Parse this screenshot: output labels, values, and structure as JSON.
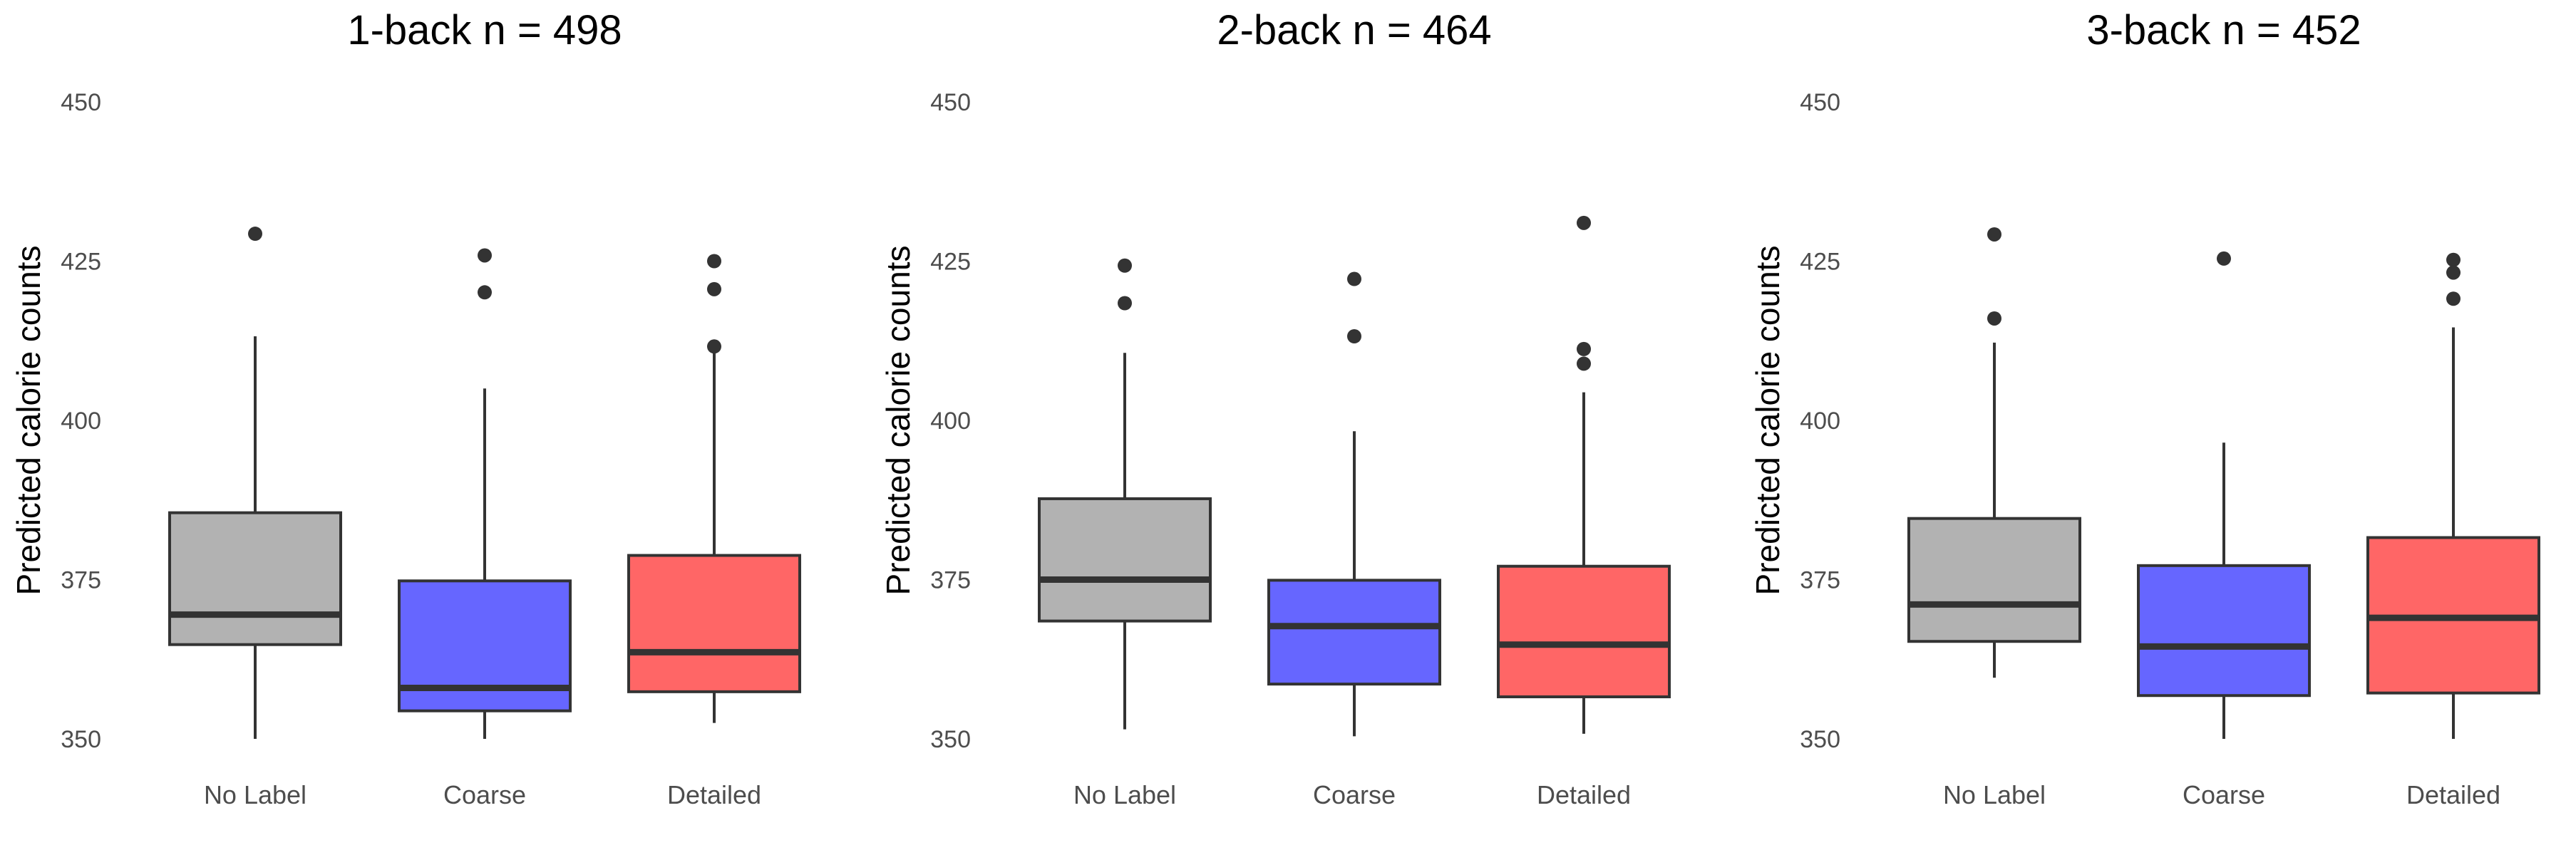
{
  "chart_data": [
    {
      "type": "box",
      "title": "1-back n = 498",
      "ylabel": "Predicted calorie counts",
      "ylim": [
        350,
        450
      ],
      "yticks": [
        350,
        375,
        400,
        425,
        450
      ],
      "categories": [
        "No Label",
        "Coarse",
        "Detailed"
      ],
      "colors": [
        "#b2b2b2",
        "#6666ff",
        "#ff6666"
      ],
      "boxes": [
        {
          "category": "No Label",
          "whisker_low": 350,
          "q1": 364.8,
          "median": 369.5,
          "q3": 385.5,
          "whisker_high": 413.2,
          "outliers": [
            429.3
          ]
        },
        {
          "category": "Coarse",
          "whisker_low": 350,
          "q1": 354.4,
          "median": 358.0,
          "q3": 374.8,
          "whisker_high": 405.0,
          "outliers": [
            425.9,
            420.1
          ]
        },
        {
          "category": "Detailed",
          "whisker_low": 352.5,
          "q1": 357.4,
          "median": 363.6,
          "q3": 378.8,
          "whisker_high": 411.5,
          "outliers": [
            425.0,
            420.6,
            411.6
          ]
        }
      ],
      "grid": false
    },
    {
      "type": "box",
      "title": "2-back n = 464",
      "ylabel": "Predicted calorie counts",
      "ylim": [
        350,
        450
      ],
      "yticks": [
        350,
        375,
        400,
        425,
        450
      ],
      "categories": [
        "No Label",
        "Coarse",
        "Detailed"
      ],
      "colors": [
        "#b2b2b2",
        "#6666ff",
        "#ff6666"
      ],
      "boxes": [
        {
          "category": "No Label",
          "whisker_low": 351.5,
          "q1": 368.5,
          "median": 375.0,
          "q3": 387.7,
          "whisker_high": 410.6,
          "outliers": [
            424.3,
            418.4
          ]
        },
        {
          "category": "Coarse",
          "whisker_low": 350.4,
          "q1": 358.6,
          "median": 367.7,
          "q3": 374.9,
          "whisker_high": 398.3,
          "outliers": [
            422.2,
            413.2
          ]
        },
        {
          "category": "Detailed",
          "whisker_low": 350.8,
          "q1": 356.6,
          "median": 364.8,
          "q3": 377.1,
          "whisker_high": 404.4,
          "outliers": [
            431.0,
            411.2,
            408.9
          ]
        }
      ],
      "grid": false
    },
    {
      "type": "box",
      "title": "3-back n = 452",
      "ylabel": "Predicted calorie counts",
      "ylim": [
        350,
        450
      ],
      "yticks": [
        350,
        375,
        400,
        425,
        450
      ],
      "categories": [
        "No Label",
        "Coarse",
        "Detailed"
      ],
      "colors": [
        "#b2b2b2",
        "#6666ff",
        "#ff6666"
      ],
      "boxes": [
        {
          "category": "No Label",
          "whisker_low": 359.6,
          "q1": 365.3,
          "median": 371.1,
          "q3": 384.6,
          "whisker_high": 412.2,
          "outliers": [
            429.2,
            416.0
          ]
        },
        {
          "category": "Coarse",
          "whisker_low": 350,
          "q1": 356.8,
          "median": 364.5,
          "q3": 377.2,
          "whisker_high": 396.5,
          "outliers": [
            425.4
          ]
        },
        {
          "category": "Detailed",
          "whisker_low": 350,
          "q1": 357.2,
          "median": 369.0,
          "q3": 381.6,
          "whisker_high": 414.6,
          "outliers": [
            425.2,
            423.2,
            419.1
          ]
        }
      ],
      "grid": false
    }
  ]
}
